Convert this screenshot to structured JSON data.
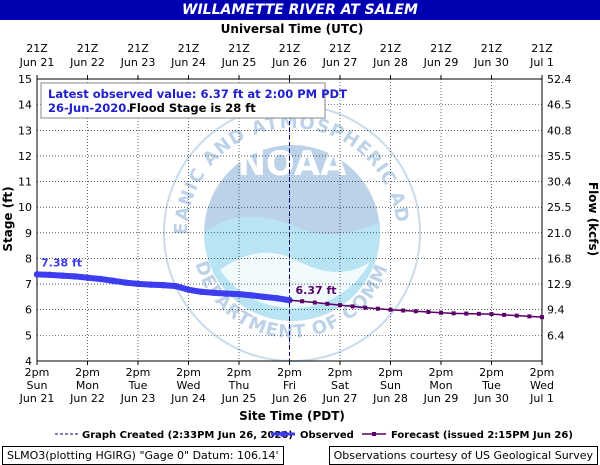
{
  "title": "WILLAMETTE RIVER AT SALEM",
  "top_axis_title": "Universal Time (UTC)",
  "top_ticks": [
    {
      "line1": "21Z",
      "line2": "Jun 21",
      "x": 0
    },
    {
      "line1": "21Z",
      "line2": "Jun 22",
      "x": 1
    },
    {
      "line1": "21Z",
      "line2": "Jun 23",
      "x": 2
    },
    {
      "line1": "21Z",
      "line2": "Jun 24",
      "x": 3
    },
    {
      "line1": "21Z",
      "line2": "Jun 25",
      "x": 4
    },
    {
      "line1": "21Z",
      "line2": "Jun 26",
      "x": 5
    },
    {
      "line1": "21Z",
      "line2": "Jun 27",
      "x": 6
    },
    {
      "line1": "21Z",
      "line2": "Jun 28",
      "x": 7
    },
    {
      "line1": "21Z",
      "line2": "Jun 29",
      "x": 8
    },
    {
      "line1": "21Z",
      "line2": "Jun 30",
      "x": 9
    },
    {
      "line1": "21Z",
      "line2": "Jul 1",
      "x": 10
    }
  ],
  "bottom_ticks": [
    {
      "line1": "2pm",
      "line2": "Sun",
      "line3": "Jun 21",
      "x": 0
    },
    {
      "line1": "2pm",
      "line2": "Mon",
      "line3": "Jun 22",
      "x": 1
    },
    {
      "line1": "2pm",
      "line2": "Tue",
      "line3": "Jun 23",
      "x": 2
    },
    {
      "line1": "2pm",
      "line2": "Wed",
      "line3": "Jun 24",
      "x": 3
    },
    {
      "line1": "2pm",
      "line2": "Thu",
      "line3": "Jun 25",
      "x": 4
    },
    {
      "line1": "2pm",
      "line2": "Fri",
      "line3": "Jun 26",
      "x": 5
    },
    {
      "line1": "2pm",
      "line2": "Sat",
      "line3": "Jun 27",
      "x": 6
    },
    {
      "line1": "2pm",
      "line2": "Sun",
      "line3": "Jun 28",
      "x": 7
    },
    {
      "line1": "2pm",
      "line2": "Mon",
      "line3": "Jun 29",
      "x": 8
    },
    {
      "line1": "2pm",
      "line2": "Tue",
      "line3": "Jun 30",
      "x": 9
    },
    {
      "line1": "2pm",
      "line2": "Wed",
      "line3": "Jul 1",
      "x": 10
    }
  ],
  "info_box": {
    "line1": "Latest observed value: 6.37 ft at 2:00 PM PDT",
    "line2a": "26-Jun-2020.",
    "line2b": "Flood Stage is 28 ft"
  },
  "legend": {
    "graph_created": "Graph Created (2:33PM Jun 26, 2020)",
    "observed": "Observed",
    "forecast": "Forecast (issued 2:15PM Jun 26)"
  },
  "footer": {
    "left": "SLMO3(plotting HGIRG) \"Gage 0\" Datum: 106.14'",
    "right": "Observations courtesy of US Geological Survey"
  },
  "watermark": {
    "circle_text": "NATIONAL OCEANIC AND ATMOSPHERIC ADMINISTRATION",
    "bottom_text": "U.S. DEPARTMENT OF COMMERCE",
    "center_text": "NOAA"
  },
  "colors": {
    "title_bg": "#0000b0",
    "observed": "#3c3cf0",
    "forecast": "#5a0068",
    "grid": "#000000",
    "info_text": "#2020d0",
    "watermark": "#bcd2e8"
  },
  "chart_data": {
    "type": "line",
    "x_unit": "days since 2pm Sun Jun 21 (PDT)",
    "xlabel": "Site Time (PDT)",
    "ylabel": "Stage (ft)",
    "y2label": "Flow (kcfs)",
    "xlim": [
      0,
      10
    ],
    "ylim": [
      4,
      15
    ],
    "grid": true,
    "y_ticks": [
      4,
      5,
      6,
      7,
      8,
      9,
      10,
      11,
      12,
      13,
      14,
      15
    ],
    "y2_ticks": [
      {
        "stage": 6,
        "label": "9.4"
      },
      {
        "stage": 5,
        "label": "6.4"
      },
      {
        "stage": 7,
        "label": "12.9"
      },
      {
        "stage": 8,
        "label": "16.8"
      },
      {
        "stage": 9,
        "label": "21.0"
      },
      {
        "stage": 10,
        "label": "25.5"
      },
      {
        "stage": 11,
        "label": "30.4"
      },
      {
        "stage": 12,
        "label": "35.5"
      },
      {
        "stage": 13,
        "label": "40.8"
      },
      {
        "stage": 14,
        "label": "46.5"
      },
      {
        "stage": 15,
        "label": "52.4"
      }
    ],
    "now_x": 5,
    "series": [
      {
        "name": "Observed",
        "points": [
          [
            0.0,
            7.38
          ],
          [
            0.25,
            7.36
          ],
          [
            0.5,
            7.33
          ],
          [
            0.75,
            7.3
          ],
          [
            1.0,
            7.25
          ],
          [
            1.25,
            7.2
          ],
          [
            1.5,
            7.13
          ],
          [
            1.75,
            7.06
          ],
          [
            2.0,
            7.01
          ],
          [
            2.25,
            6.98
          ],
          [
            2.5,
            6.96
          ],
          [
            2.75,
            6.92
          ],
          [
            3.0,
            6.78
          ],
          [
            3.25,
            6.7
          ],
          [
            3.5,
            6.66
          ],
          [
            3.75,
            6.63
          ],
          [
            4.0,
            6.61
          ],
          [
            4.25,
            6.56
          ],
          [
            4.5,
            6.5
          ],
          [
            4.75,
            6.45
          ],
          [
            5.0,
            6.37
          ]
        ],
        "start_label": "7.38 ft",
        "end_label": "6.37 ft"
      },
      {
        "name": "Forecast",
        "points": [
          [
            5.0,
            6.37
          ],
          [
            5.25,
            6.33
          ],
          [
            5.5,
            6.28
          ],
          [
            5.75,
            6.23
          ],
          [
            6.0,
            6.18
          ],
          [
            6.25,
            6.13
          ],
          [
            6.5,
            6.08
          ],
          [
            6.75,
            6.04
          ],
          [
            7.0,
            6.0
          ],
          [
            7.25,
            5.97
          ],
          [
            7.5,
            5.94
          ],
          [
            7.75,
            5.91
          ],
          [
            8.0,
            5.88
          ],
          [
            8.25,
            5.86
          ],
          [
            8.5,
            5.85
          ],
          [
            8.75,
            5.84
          ],
          [
            9.0,
            5.83
          ],
          [
            9.25,
            5.8
          ],
          [
            9.5,
            5.77
          ],
          [
            9.75,
            5.74
          ],
          [
            10.0,
            5.71
          ]
        ]
      }
    ]
  }
}
